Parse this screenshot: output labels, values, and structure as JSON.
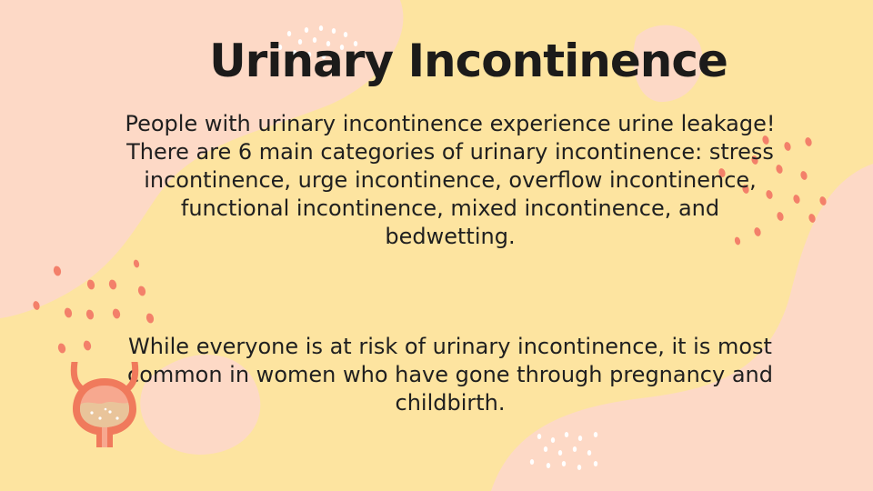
{
  "slide": {
    "title": "Urinary Incontinence",
    "paragraph_1": "People with urinary incontinence experience urine leakage! There are 6 main categories of urinary incontinence: stress incontinence, urge incontinence, overflow incontinence, functional incontinence, mixed incontinence, and bedwetting.",
    "paragraph_2": "While everyone is at risk of urinary incontinence, it is most common in women who have gone through pregnancy and childbirth.",
    "illustration": "bladder-icon"
  },
  "colors": {
    "background_yellow": "#fde4a0",
    "blob_peach": "#fdd9c6",
    "dot_coral": "#f3806a",
    "dot_white": "#ffffff",
    "text": "#1f1f1f",
    "bladder_red": "#f07a5c",
    "bladder_fill": "#e9c49a"
  }
}
